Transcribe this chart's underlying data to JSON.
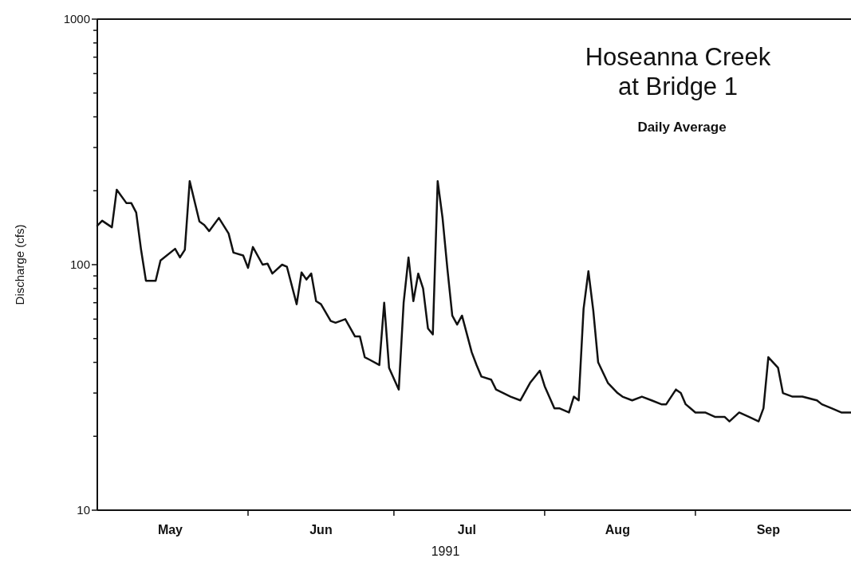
{
  "chart_data": {
    "type": "line",
    "title": "Hoseanna Creek\nat Bridge 1",
    "subtitle": "Daily Average",
    "xlabel": "1991",
    "ylabel": "Discharge (cfs)",
    "log": true,
    "grid": false,
    "marker": "none",
    "line_style": "solid",
    "xlim": [
      "1991-05-01",
      "1991-10-03"
    ],
    "xticks": [
      {
        "value": "1991-05-16",
        "label": "May"
      },
      {
        "value": "1991-06-01",
        "label": null
      },
      {
        "value": "1991-06-16",
        "label": "Jun"
      },
      {
        "value": "1991-07-01",
        "label": null
      },
      {
        "value": "1991-07-16",
        "label": "Jul"
      },
      {
        "value": "1991-08-01",
        "label": null
      },
      {
        "value": "1991-08-16",
        "label": "Aug"
      },
      {
        "value": "1991-09-01",
        "label": null
      },
      {
        "value": "1991-09-16",
        "label": "Sep"
      }
    ],
    "ylim": [
      10,
      1000
    ],
    "yticks": [
      10,
      {
        "value": 20,
        "label": null
      },
      {
        "value": 30,
        "label": null
      },
      {
        "value": 40,
        "label": null
      },
      {
        "value": 50,
        "label": null
      },
      {
        "value": 60,
        "label": null
      },
      {
        "value": 70,
        "label": null
      },
      {
        "value": 80,
        "label": null
      },
      {
        "value": 90,
        "label": null
      },
      100,
      {
        "value": 200,
        "label": null
      },
      {
        "value": 300,
        "label": null
      },
      {
        "value": 400,
        "label": null
      },
      {
        "value": 500,
        "label": null
      },
      {
        "value": 600,
        "label": null
      },
      {
        "value": 700,
        "label": null
      },
      {
        "value": 800,
        "label": null
      },
      {
        "value": 900,
        "label": null
      },
      1000
    ],
    "x": [
      "1991-05-01",
      "1991-05-02",
      "1991-05-04",
      "1991-05-05",
      "1991-05-07",
      "1991-05-08",
      "1991-05-09",
      "1991-05-10",
      "1991-05-11",
      "1991-05-13",
      "1991-05-14",
      "1991-05-17",
      "1991-05-18",
      "1991-05-19",
      "1991-05-20",
      "1991-05-22",
      "1991-05-23",
      "1991-05-24",
      "1991-05-26",
      "1991-05-28",
      "1991-05-29",
      "1991-05-31",
      "1991-06-01",
      "1991-06-02",
      "1991-06-04",
      "1991-06-05",
      "1991-06-06",
      "1991-06-08",
      "1991-06-09",
      "1991-06-11",
      "1991-06-12",
      "1991-06-13",
      "1991-06-14",
      "1991-06-15",
      "1991-06-16",
      "1991-06-18",
      "1991-06-19",
      "1991-06-21",
      "1991-06-23",
      "1991-06-24",
      "1991-06-25",
      "1991-06-26",
      "1991-06-28",
      "1991-06-29",
      "1991-06-30",
      "1991-07-02",
      "1991-07-03",
      "1991-07-04",
      "1991-07-05",
      "1991-07-06",
      "1991-07-07",
      "1991-07-08",
      "1991-07-09",
      "1991-07-10",
      "1991-07-11",
      "1991-07-12",
      "1991-07-13",
      "1991-07-14",
      "1991-07-15",
      "1991-07-17",
      "1991-07-18",
      "1991-07-19",
      "1991-07-21",
      "1991-07-22",
      "1991-07-25",
      "1991-07-27",
      "1991-07-29",
      "1991-07-31",
      "1991-08-01",
      "1991-08-03",
      "1991-08-04",
      "1991-08-06",
      "1991-08-07",
      "1991-08-08",
      "1991-08-09",
      "1991-08-10",
      "1991-08-11",
      "1991-08-12",
      "1991-08-14",
      "1991-08-16",
      "1991-08-17",
      "1991-08-19",
      "1991-08-21",
      "1991-08-23",
      "1991-08-25",
      "1991-08-26",
      "1991-08-28",
      "1991-08-29",
      "1991-08-30",
      "1991-08-31",
      "1991-09-01",
      "1991-09-03",
      "1991-09-05",
      "1991-09-07",
      "1991-09-08",
      "1991-09-10",
      "1991-09-12",
      "1991-09-14",
      "1991-09-15",
      "1991-09-16",
      "1991-09-18",
      "1991-09-19",
      "1991-09-21",
      "1991-09-23",
      "1991-09-26",
      "1991-09-27",
      "1991-09-29",
      "1991-10-01",
      "1991-10-03"
    ],
    "series": [
      {
        "color": "#111111",
        "values": [
          144,
          151,
          142,
          202,
          178,
          178,
          163,
          115,
          86,
          86,
          104,
          116,
          107,
          115,
          219,
          150,
          145,
          137,
          155,
          134,
          112,
          109,
          97,
          118,
          100,
          101,
          92,
          100,
          98,
          69,
          93,
          87,
          92,
          71,
          69,
          59,
          58,
          60,
          51,
          51,
          42,
          41,
          39,
          70,
          38,
          31,
          70,
          107,
          71,
          92,
          80,
          55,
          52,
          219,
          155,
          96,
          62,
          57,
          62,
          44,
          39,
          35,
          34,
          31,
          29,
          28,
          33,
          37,
          32,
          26,
          26,
          25,
          29,
          28,
          66,
          94,
          65,
          40,
          33,
          30,
          29,
          28,
          29,
          28,
          27,
          27,
          31,
          30,
          27,
          26,
          25,
          25,
          24,
          24,
          23,
          25,
          24,
          23,
          26,
          42,
          38,
          30,
          29,
          29,
          28,
          27,
          26,
          25,
          25
        ]
      }
    ]
  }
}
